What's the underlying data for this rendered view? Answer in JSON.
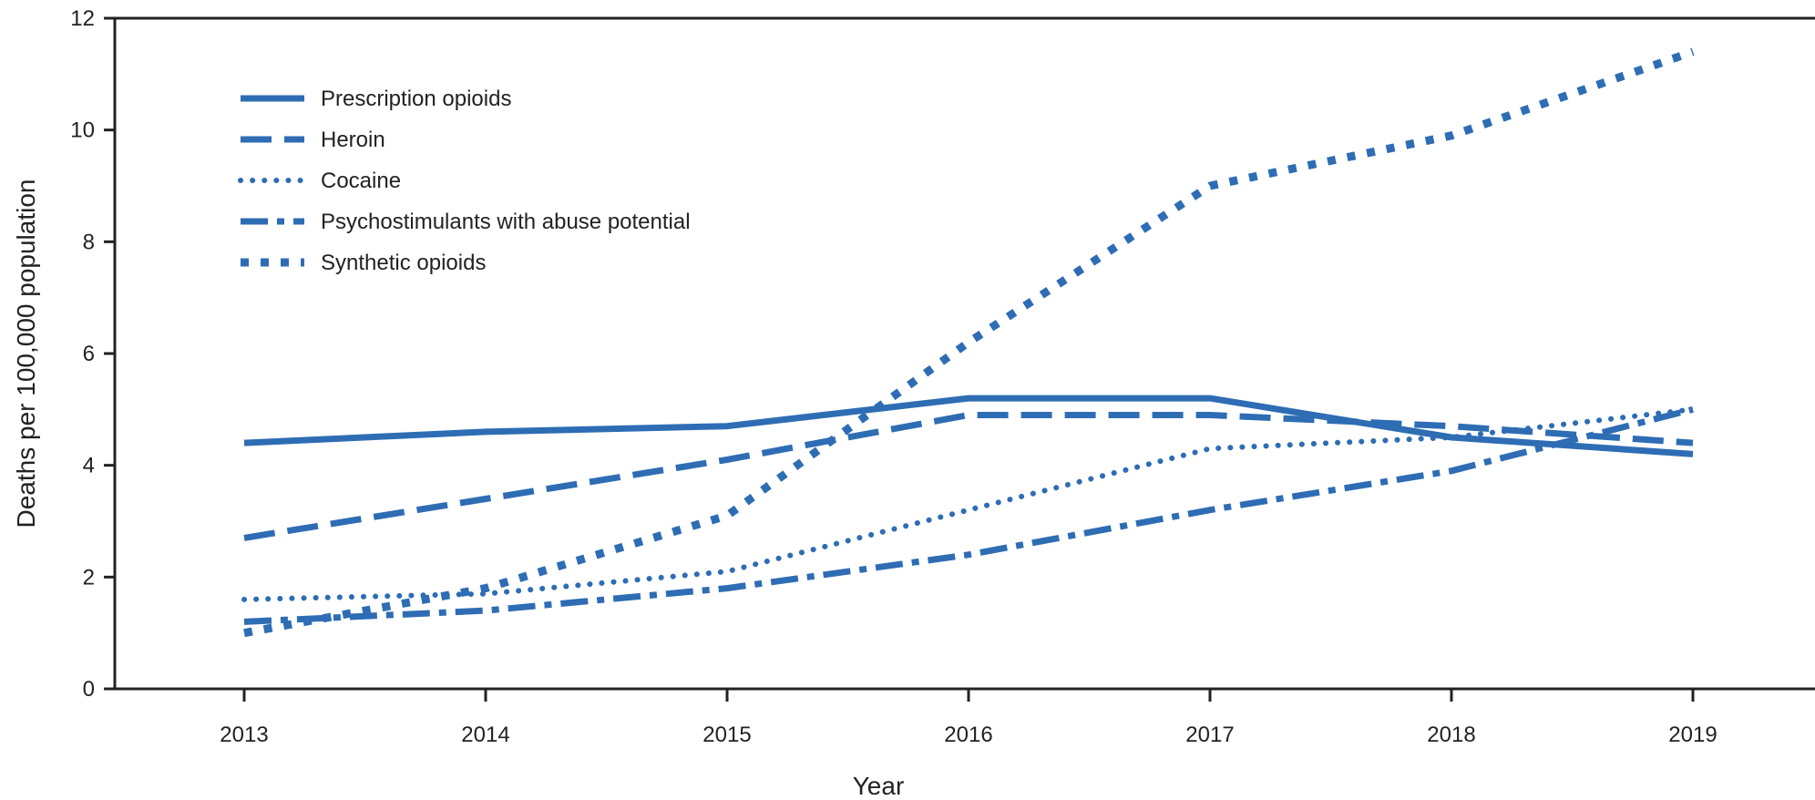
{
  "chart_data": {
    "type": "line",
    "title": "",
    "xlabel": "Year",
    "ylabel": "Deaths per 100,000 population",
    "x": [
      2013,
      2014,
      2015,
      2016,
      2017,
      2018,
      2019
    ],
    "x_tick_labels": [
      "2013",
      "2014",
      "2015",
      "2016",
      "2017",
      "2018",
      "2019"
    ],
    "ylim": [
      0,
      12
    ],
    "y_ticks": [
      0,
      2,
      4,
      6,
      8,
      10,
      12
    ],
    "y_tick_labels": [
      "0",
      "2",
      "4",
      "6",
      "8",
      "10",
      "12"
    ],
    "grid": false,
    "legend_position": "top-left",
    "line_color": "#2e6db4",
    "series": [
      {
        "name": "Prescription opioids",
        "style": "solid",
        "values": [
          4.4,
          4.6,
          4.7,
          5.2,
          5.2,
          4.5,
          4.2
        ]
      },
      {
        "name": "Heroin",
        "style": "dashed",
        "values": [
          2.7,
          3.4,
          4.1,
          4.9,
          4.9,
          4.7,
          4.4
        ]
      },
      {
        "name": "Cocaine",
        "style": "dotted",
        "values": [
          1.6,
          1.7,
          2.1,
          3.2,
          4.3,
          4.5,
          5.0
        ]
      },
      {
        "name": "Psychostimulants with abuse potential",
        "style": "dash-dot",
        "values": [
          1.2,
          1.4,
          1.8,
          2.4,
          3.2,
          3.9,
          5.0
        ]
      },
      {
        "name": "Synthetic opioids",
        "style": "square-dotted",
        "values": [
          1.0,
          1.8,
          3.1,
          6.2,
          9.0,
          9.9,
          11.4
        ]
      }
    ]
  }
}
